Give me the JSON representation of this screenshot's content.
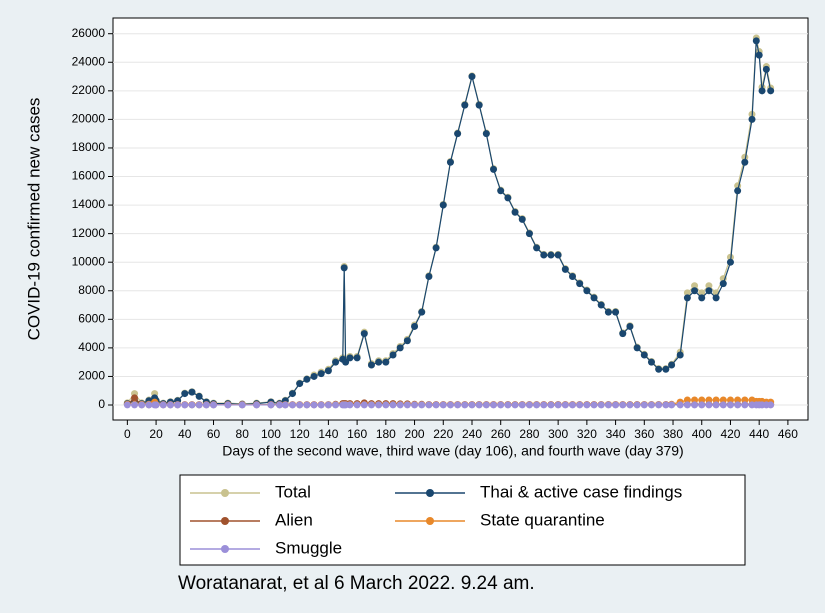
{
  "chart_data": {
    "type": "line",
    "y_label": "COVID-19 confirmed new cases",
    "x_label": "Days of the second wave, third wave (day 106), and fourth wave (day 379)",
    "caption": "Woratanarat, et al 6 March 2022. 9.24 am.",
    "x": [
      0,
      5,
      10,
      15,
      19,
      20,
      25,
      30,
      35,
      40,
      45,
      50,
      55,
      60,
      70,
      80,
      90,
      100,
      106,
      110,
      115,
      120,
      125,
      130,
      135,
      140,
      145,
      150,
      151,
      152,
      155,
      160,
      165,
      170,
      175,
      180,
      185,
      190,
      195,
      200,
      205,
      210,
      215,
      220,
      225,
      230,
      235,
      240,
      245,
      250,
      255,
      260,
      265,
      270,
      275,
      280,
      285,
      290,
      295,
      300,
      305,
      310,
      315,
      320,
      325,
      330,
      335,
      340,
      345,
      350,
      355,
      360,
      365,
      370,
      375,
      379,
      385,
      390,
      395,
      400,
      405,
      410,
      415,
      420,
      425,
      430,
      435,
      438,
      440,
      442,
      445,
      448
    ],
    "series": [
      {
        "name": "Total",
        "color": "#c9c28f",
        "values": [
          150,
          800,
          150,
          350,
          800,
          350,
          130,
          230,
          330,
          830,
          930,
          630,
          230,
          130,
          130,
          80,
          130,
          230,
          130,
          330,
          830,
          1530,
          1830,
          2100,
          2300,
          2500,
          3100,
          3300,
          9700,
          3100,
          3400,
          3400,
          5100,
          2900,
          3100,
          3100,
          3600,
          4100,
          4600,
          5600,
          6550,
          9050,
          11050,
          14050,
          17050,
          19050,
          21050,
          23050,
          21050,
          19050,
          16550,
          15050,
          14550,
          13550,
          13050,
          12050,
          11050,
          10550,
          10550,
          10550,
          9550,
          9050,
          8550,
          8050,
          7550,
          7050,
          6550,
          6550,
          5050,
          5550,
          4050,
          3550,
          3050,
          2550,
          2550,
          2850,
          3700,
          7850,
          8350,
          7850,
          8350,
          7850,
          8850,
          10350,
          15350,
          17350,
          20350,
          25700,
          24750,
          22250,
          23700,
          22200
        ]
      },
      {
        "name": "Thai & active case findings",
        "color": "#1a476f",
        "values": [
          100,
          300,
          100,
          300,
          500,
          300,
          100,
          200,
          300,
          800,
          900,
          600,
          200,
          100,
          100,
          50,
          100,
          200,
          100,
          300,
          800,
          1500,
          1800,
          2000,
          2200,
          2400,
          3000,
          3200,
          9600,
          3000,
          3300,
          3300,
          5000,
          2800,
          3000,
          3000,
          3500,
          4000,
          4500,
          5500,
          6500,
          9000,
          11000,
          14000,
          17000,
          19000,
          21000,
          23000,
          21000,
          19000,
          16500,
          15000,
          14500,
          13500,
          13000,
          12000,
          11000,
          10500,
          10500,
          10500,
          9500,
          9000,
          8500,
          8000,
          7500,
          7000,
          6500,
          6500,
          5000,
          5500,
          4000,
          3500,
          3000,
          2500,
          2500,
          2800,
          3500,
          7500,
          8000,
          7500,
          8000,
          7500,
          8500,
          10000,
          15000,
          17000,
          20000,
          25500,
          24500,
          22000,
          23500,
          22000
        ]
      },
      {
        "name": "Alien",
        "color": "#a0522d",
        "values": [
          50,
          500,
          20,
          20,
          100,
          20,
          20,
          20,
          20,
          20,
          20,
          20,
          20,
          20,
          20,
          20,
          20,
          20,
          20,
          20,
          20,
          20,
          20,
          20,
          20,
          20,
          50,
          100,
          100,
          100,
          100,
          100,
          150,
          100,
          100,
          100,
          100,
          80,
          80,
          50,
          50,
          30,
          30,
          30,
          30,
          30,
          30,
          30,
          30,
          30,
          30,
          30,
          30,
          30,
          30,
          30,
          30,
          30,
          30,
          30,
          30,
          30,
          30,
          30,
          30,
          30,
          30,
          30,
          30,
          30,
          30,
          30,
          30,
          30,
          30,
          30,
          30,
          30,
          30,
          30,
          30,
          30,
          30,
          30,
          30,
          30,
          30,
          30,
          30,
          30,
          30,
          30
        ]
      },
      {
        "name": "State quarantine",
        "color": "#e8882a",
        "values": [
          50,
          50,
          50,
          50,
          200,
          50,
          30,
          30,
          30,
          30,
          30,
          30,
          30,
          30,
          30,
          30,
          30,
          30,
          30,
          30,
          30,
          30,
          30,
          30,
          30,
          30,
          30,
          30,
          30,
          30,
          30,
          30,
          30,
          30,
          30,
          30,
          30,
          30,
          30,
          30,
          30,
          30,
          30,
          30,
          30,
          30,
          30,
          30,
          30,
          30,
          30,
          30,
          30,
          30,
          30,
          30,
          30,
          30,
          30,
          30,
          30,
          30,
          30,
          30,
          30,
          30,
          30,
          30,
          30,
          30,
          30,
          30,
          30,
          30,
          30,
          50,
          200,
          350,
          350,
          350,
          350,
          350,
          350,
          350,
          350,
          350,
          350,
          250,
          250,
          250,
          200,
          200
        ]
      },
      {
        "name": "Smuggle",
        "color": "#9b8fd9",
        "values": [
          5,
          5,
          5,
          5,
          5,
          5,
          5,
          5,
          5,
          5,
          5,
          5,
          5,
          5,
          5,
          5,
          5,
          5,
          5,
          5,
          5,
          5,
          5,
          5,
          5,
          5,
          5,
          5,
          5,
          5,
          5,
          5,
          5,
          5,
          5,
          5,
          5,
          5,
          5,
          5,
          5,
          5,
          5,
          5,
          5,
          5,
          5,
          5,
          5,
          5,
          5,
          5,
          5,
          5,
          5,
          5,
          5,
          5,
          5,
          5,
          5,
          5,
          5,
          5,
          5,
          5,
          5,
          5,
          5,
          5,
          5,
          5,
          5,
          5,
          5,
          5,
          5,
          5,
          5,
          5,
          5,
          5,
          5,
          5,
          5,
          5,
          5,
          5,
          5,
          5,
          5,
          5
        ]
      }
    ],
    "xlim": [
      -10,
      474
    ],
    "xticks": [
      0,
      20,
      40,
      60,
      80,
      100,
      120,
      140,
      160,
      180,
      200,
      220,
      240,
      260,
      280,
      300,
      320,
      340,
      360,
      380,
      400,
      420,
      440,
      460
    ],
    "ylim": [
      -1050,
      27100
    ],
    "yticks": [
      0,
      2000,
      4000,
      6000,
      8000,
      10000,
      12000,
      14000,
      16000,
      18000,
      20000,
      22000,
      24000,
      26000
    ],
    "grid": true
  }
}
